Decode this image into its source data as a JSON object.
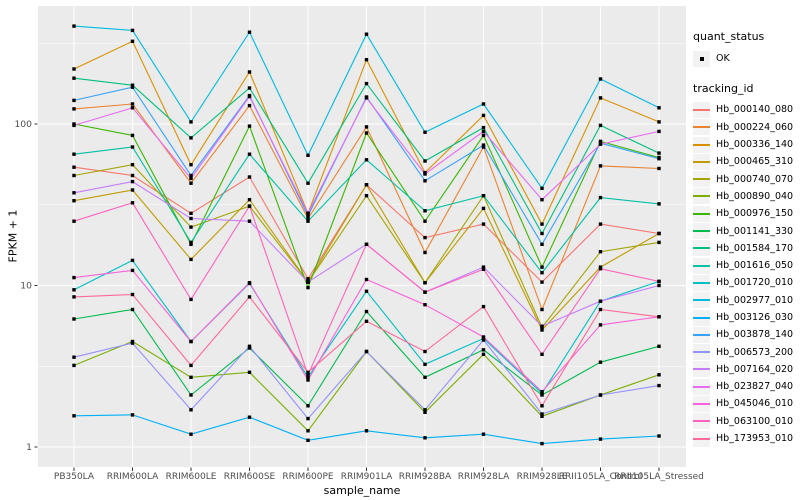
{
  "chart_data": {
    "type": "line",
    "title": "",
    "xlabel": "sample_name",
    "ylabel": "FPKM + 1",
    "y_scale": "log10",
    "ylim": [
      0.78,
      540
    ],
    "y_ticks": [
      1,
      10,
      100
    ],
    "y_tick_labels": [
      "1",
      "10",
      "100"
    ],
    "y_minor_ticks": [
      3.162,
      31.62,
      316.2
    ],
    "grid": "white major+minor gridlines on gray panel",
    "legend_position": "right",
    "point_marker": "small black square (quant_status = OK)",
    "categories": [
      "PB350LA",
      "RRIM600LA",
      "RRIM600LE",
      "RRIM600SE",
      "RRIM600PE",
      "RRIM901LA",
      "RRIM928BA",
      "RRIM928LA",
      "RRIM928LE",
      "RRII105LA_Control",
      "RRII105LA_Stressed"
    ],
    "series": [
      {
        "name": "Hb_000140_080",
        "color": "#F8766D",
        "values": [
          54,
          48,
          28,
          47,
          11,
          42,
          19.8,
          24,
          10.5,
          24,
          21
        ]
      },
      {
        "name": "Hb_000224_060",
        "color": "#EA8331",
        "values": [
          124,
          133,
          43,
          130,
          26,
          96,
          16,
          72,
          7.1,
          55,
          53
        ]
      },
      {
        "name": "Hb_000336_140",
        "color": "#D89000",
        "values": [
          219,
          325,
          56,
          210,
          28,
          250,
          50,
          113,
          24,
          145,
          103
        ]
      },
      {
        "name": "Hb_000465_310",
        "color": "#C09B00",
        "values": [
          33.5,
          39,
          14.5,
          34,
          10.5,
          42,
          10.4,
          30,
          5.3,
          13,
          21
        ]
      },
      {
        "name": "Hb_000740_070",
        "color": "#A3A500",
        "values": [
          48,
          56,
          23,
          31,
          10.5,
          36,
          10.4,
          36,
          5.5,
          16.2,
          18.5
        ]
      },
      {
        "name": "Hb_000890_040",
        "color": "#7CAE00",
        "values": [
          3.2,
          4.5,
          2.7,
          2.9,
          1.26,
          3.9,
          1.64,
          3.75,
          1.55,
          2.1,
          2.8
        ]
      },
      {
        "name": "Hb_000976_150",
        "color": "#39B600",
        "values": [
          100,
          85,
          18,
          97,
          9.7,
          88,
          25,
          85,
          13,
          78,
          62
        ]
      },
      {
        "name": "Hb_001141_330",
        "color": "#00BB4E",
        "values": [
          6.2,
          7.1,
          2.1,
          4.1,
          1.8,
          6.9,
          2.7,
          4.0,
          2.1,
          3.35,
          4.2
        ]
      },
      {
        "name": "Hb_001584_170",
        "color": "#00BF7D",
        "values": [
          192,
          174,
          82,
          167,
          43,
          178,
          59,
          95,
          21,
          98,
          66
        ]
      },
      {
        "name": "Hb_001616_050",
        "color": "#00C1A3",
        "values": [
          65,
          72,
          18.5,
          65,
          25,
          60,
          29,
          36,
          12,
          35,
          32
        ]
      },
      {
        "name": "Hb_001720_010",
        "color": "#00BFC4",
        "values": [
          9.4,
          14.3,
          4.5,
          10.3,
          2.7,
          9.2,
          3.25,
          4.7,
          2.15,
          8.0,
          10.6
        ]
      },
      {
        "name": "Hb_002977_010",
        "color": "#00BAE0",
        "values": [
          404,
          380,
          103,
          370,
          64,
          360,
          89,
          133,
          40,
          190,
          126
        ]
      },
      {
        "name": "Hb_003126_030",
        "color": "#00B0F6",
        "values": [
          1.56,
          1.58,
          1.2,
          1.53,
          1.1,
          1.26,
          1.14,
          1.2,
          1.05,
          1.12,
          1.17
        ]
      },
      {
        "name": "Hb_003878_140",
        "color": "#35A2FF",
        "values": [
          140,
          169,
          48,
          150,
          27,
          147,
          44.5,
          74,
          18,
          76,
          61
        ]
      },
      {
        "name": "Hb_006573_200",
        "color": "#9590FF",
        "values": [
          3.6,
          4.4,
          1.7,
          4.2,
          1.5,
          3.9,
          1.7,
          4.6,
          1.6,
          2.1,
          2.4
        ]
      },
      {
        "name": "Hb_007164_020",
        "color": "#C77CFF",
        "values": [
          37.5,
          44,
          26,
          25,
          10.5,
          18,
          9.1,
          13,
          5.6,
          8,
          10
        ]
      },
      {
        "name": "Hb_023827_040",
        "color": "#E76BF3",
        "values": [
          98,
          126,
          46,
          148,
          28,
          145,
          49,
          90,
          34,
          75,
          90
        ]
      },
      {
        "name": "Hb_045046_010",
        "color": "#FA62DB",
        "values": [
          11.2,
          12.4,
          4.5,
          10.4,
          2.6,
          10.9,
          7.6,
          4.8,
          2.2,
          5.7,
          6.4
        ]
      },
      {
        "name": "Hb_063100_010",
        "color": "#FF62BC",
        "values": [
          25,
          32.5,
          8.2,
          31,
          2.8,
          18,
          9.1,
          12.6,
          3.75,
          12.7,
          10.6
        ]
      },
      {
        "name": "Hb_173953_010",
        "color": "#FF6A98",
        "values": [
          8.5,
          8.8,
          3.2,
          8.5,
          2.9,
          6.0,
          3.9,
          7.4,
          1.8,
          7.1,
          6.4
        ]
      }
    ]
  },
  "legend": {
    "quant_status_title": "quant_status",
    "quant_status_value": "OK",
    "tracking_id_title": "tracking_id"
  },
  "colors": {
    "panel_bg": "#EBEBEB",
    "gridline": "#FFFFFF",
    "axis_text": "#4D4D4D",
    "tick_mark": "#333333",
    "point": "#000000",
    "legend_key_bg": "#F2F2F2"
  }
}
